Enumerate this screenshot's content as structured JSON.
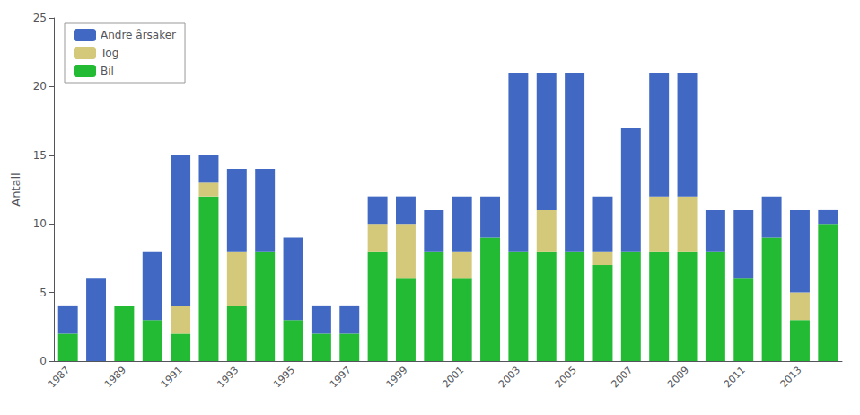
{
  "chart_data": {
    "type": "bar",
    "stacked": true,
    "ylabel": "Antall",
    "categories": [
      "1987",
      null,
      "1989",
      null,
      "1991",
      null,
      "1993",
      null,
      "1995",
      null,
      "1997",
      null,
      "1999",
      null,
      "2001",
      null,
      "2003",
      null,
      "2005",
      null,
      "2007",
      null,
      "2009",
      null,
      "2011",
      null,
      "2013",
      null
    ],
    "series": [
      {
        "name": "Bil",
        "color": "#22bb33",
        "values": [
          2,
          0,
          4,
          3,
          2,
          12,
          4,
          8,
          3,
          2,
          2,
          8,
          6,
          8,
          6,
          9,
          8,
          8,
          8,
          7,
          8,
          8,
          8,
          8,
          6,
          9,
          3,
          10
        ]
      },
      {
        "name": "Tog",
        "color": "#d4c87a",
        "values": [
          0,
          0,
          0,
          0,
          2,
          1,
          4,
          0,
          0,
          0,
          0,
          2,
          4,
          0,
          2,
          0,
          0,
          3,
          0,
          1,
          0,
          4,
          4,
          0,
          0,
          0,
          2,
          0
        ]
      },
      {
        "name": "Andre årsaker",
        "color": "#4169c4",
        "values": [
          2,
          6,
          0,
          5,
          11,
          2,
          6,
          6,
          6,
          2,
          2,
          2,
          2,
          3,
          4,
          3,
          13,
          10,
          13,
          4,
          9,
          9,
          9,
          3,
          5,
          3,
          6,
          1
        ]
      }
    ],
    "ylim": [
      0,
      25
    ],
    "yticks": [
      0,
      5,
      10,
      15,
      20,
      25
    ],
    "grid": false,
    "legend": "upper left"
  }
}
